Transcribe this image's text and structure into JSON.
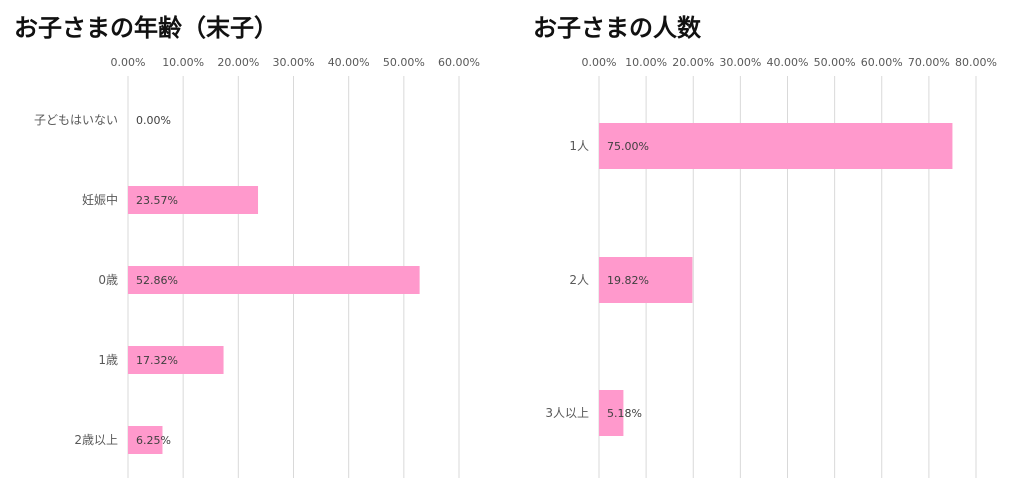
{
  "chart_data": [
    {
      "type": "bar",
      "orientation": "horizontal",
      "title": "お子さまの年齢（末子）",
      "categories": [
        "子どもはいない",
        "妊娠中",
        "0歳",
        "1歳",
        "2歳以上"
      ],
      "values": [
        0.0,
        23.57,
        52.86,
        17.32,
        6.25
      ],
      "data_labels": [
        "0.00%",
        "23.57%",
        "52.86%",
        "17.32%",
        "6.25%"
      ],
      "xlim": [
        0,
        60
      ],
      "ticks": [
        0,
        10,
        20,
        30,
        40,
        50,
        60
      ],
      "tick_labels": [
        "0.00%",
        "10.00%",
        "20.00%",
        "30.00%",
        "40.00%",
        "50.00%",
        "60.00%"
      ],
      "xlabel": "",
      "ylabel": "",
      "grid": true,
      "axis_position": "top",
      "bar_color": "#ff99cc"
    },
    {
      "type": "bar",
      "orientation": "horizontal",
      "title": "お子さまの人数",
      "categories": [
        "1人",
        "2人",
        "3人以上"
      ],
      "values": [
        75.0,
        19.82,
        5.18
      ],
      "data_labels": [
        "75.00%",
        "19.82%",
        "5.18%"
      ],
      "xlim": [
        0,
        80
      ],
      "ticks": [
        0,
        10,
        20,
        30,
        40,
        50,
        60,
        70,
        80
      ],
      "tick_labels": [
        "0.00%",
        "10.00%",
        "20.00%",
        "30.00%",
        "40.00%",
        "50.00%",
        "60.00%",
        "70.00%",
        "80.00%"
      ],
      "xlabel": "",
      "ylabel": "",
      "grid": true,
      "axis_position": "top",
      "bar_color": "#ff99cc"
    }
  ]
}
